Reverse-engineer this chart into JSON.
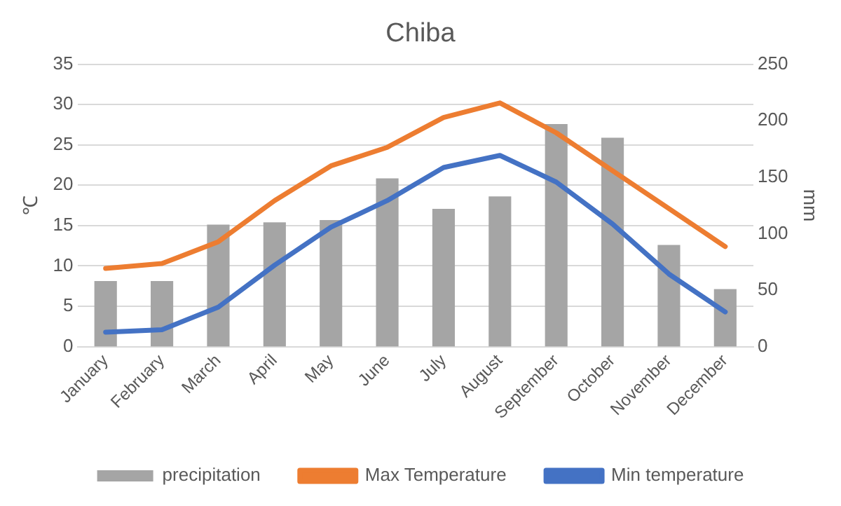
{
  "chart_data": {
    "type": "bar",
    "title": "Chiba",
    "ylabel": "℃",
    "y2label": "mm",
    "categories": [
      "January",
      "February",
      "March",
      "April",
      "May",
      "June",
      "July",
      "August",
      "September",
      "October",
      "November",
      "December"
    ],
    "series": [
      {
        "name": "precipitation",
        "axis": "y2",
        "color": "#a5a5a5",
        "values": [
          58,
          58,
          108,
          110,
          112,
          149,
          122,
          133,
          197,
          185,
          90,
          51
        ]
      },
      {
        "name": "Max Temperature",
        "type": "line",
        "color": "#ed7d31",
        "values": [
          9.7,
          10.3,
          13,
          18.1,
          22.4,
          24.7,
          28.4,
          30.2,
          26.5,
          21.8,
          17.1,
          12.4
        ]
      },
      {
        "name": "Min temperature",
        "type": "line",
        "color": "#4472c4",
        "values": [
          1.8,
          2.1,
          4.9,
          10.1,
          14.8,
          18.1,
          22.2,
          23.7,
          20.4,
          15.2,
          9,
          4.3
        ]
      }
    ],
    "ylim": [
      0,
      35
    ],
    "yticks": [
      0,
      5,
      10,
      15,
      20,
      25,
      30,
      35
    ],
    "y2lim": [
      0,
      250
    ],
    "y2ticks": [
      0,
      50,
      100,
      150,
      200,
      250
    ],
    "grid": "y",
    "legend": "bottom",
    "marker": "none"
  }
}
